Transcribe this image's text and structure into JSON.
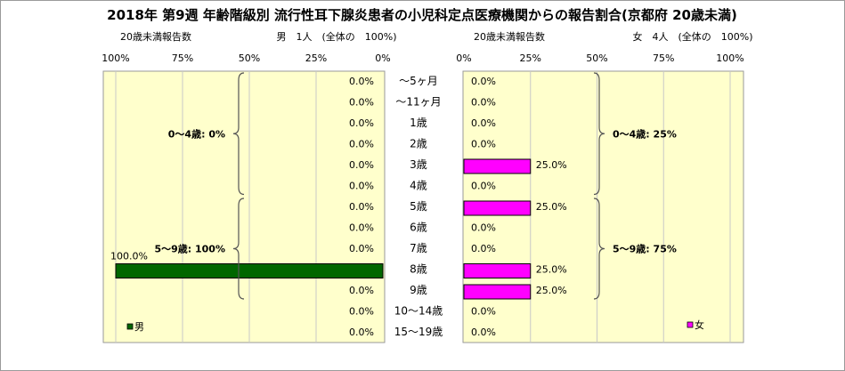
{
  "chart_data": {
    "type": "bar",
    "title": "2018年 第9週 年齢階級別 流行性耳下腺炎患者の小児科定点医療機関からの報告割合(京都府 20歳未満)",
    "categories": [
      "〜5ヶ月",
      "〜11ヶ月",
      "1歳",
      "2歳",
      "3歳",
      "4歳",
      "5歳",
      "6歳",
      "7歳",
      "8歳",
      "9歳",
      "10〜14歳",
      "15〜19歳"
    ],
    "left": {
      "header_caption": "20歳未満報告数",
      "header_summary": "男　1人　(全体の　100%)",
      "ticks": [
        "100%",
        "75%",
        "50%",
        "25%",
        "0%"
      ],
      "xlim": [
        0,
        100
      ],
      "series": {
        "name": "男",
        "color": "#006600",
        "values": [
          0,
          0,
          0,
          0,
          0,
          0,
          0,
          0,
          0,
          100,
          0,
          0,
          0
        ],
        "labels": [
          "0.0%",
          "0.0%",
          "0.0%",
          "0.0%",
          "0.0%",
          "0.0%",
          "0.0%",
          "0.0%",
          "0.0%",
          "100.0%",
          "0.0%",
          "0.0%",
          "0.0%"
        ]
      },
      "groups": [
        {
          "label": "0〜4歳: 0%",
          "from": 0,
          "to": 5
        },
        {
          "label": "5〜9歳: 100%",
          "from": 6,
          "to": 10
        }
      ],
      "legend": "男"
    },
    "right": {
      "header_caption": "20歳未満報告数",
      "header_summary": "女　4人　(全体の　100%)",
      "ticks": [
        "0%",
        "25%",
        "50%",
        "75%",
        "100%"
      ],
      "xlim": [
        0,
        100
      ],
      "series": {
        "name": "女",
        "color": "#ff00ff",
        "values": [
          0,
          0,
          0,
          0,
          25,
          0,
          25,
          0,
          0,
          25,
          25,
          0,
          0
        ],
        "labels": [
          "0.0%",
          "0.0%",
          "0.0%",
          "0.0%",
          "25.0%",
          "0.0%",
          "25.0%",
          "0.0%",
          "0.0%",
          "25.0%",
          "25.0%",
          "0.0%",
          "0.0%"
        ]
      },
      "groups": [
        {
          "label": "0〜4歳: 25%",
          "from": 0,
          "to": 5
        },
        {
          "label": "5〜9歳: 75%",
          "from": 6,
          "to": 10
        }
      ],
      "legend": "女"
    },
    "plot_background": "#ffffcc",
    "grid": true
  }
}
